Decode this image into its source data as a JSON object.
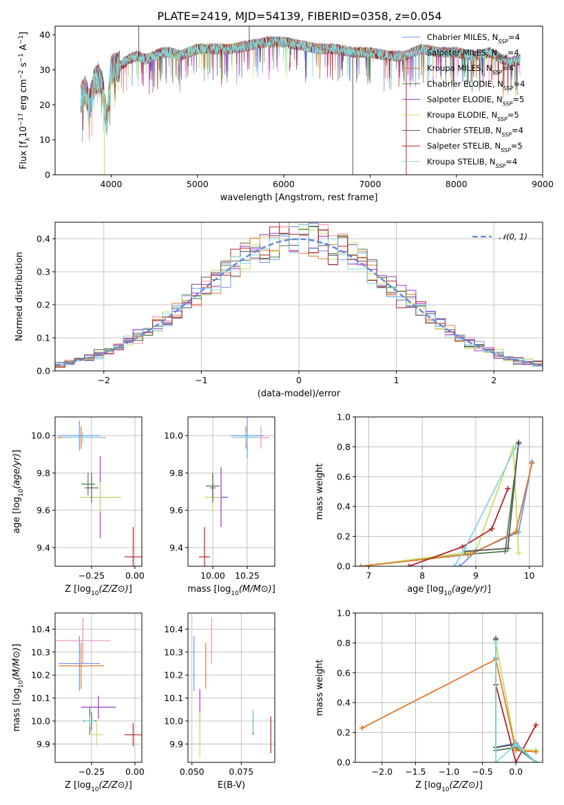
{
  "title": "PLATE=2419, MJD=54139, FIBERID=0358, z=0.054",
  "colors": [
    "#6495ed",
    "#f08cb4",
    "#e07828",
    "#4a7a4a",
    "#9932cc",
    "#c8dc64",
    "#555555",
    "#b22222",
    "#7fd8e0"
  ],
  "models": [
    {
      "label": "Chabrier MILES, N",
      "sub": "SSP",
      "eq": "=4"
    },
    {
      "label": "Salpeter MILES, N",
      "sub": "SSP",
      "eq": "=4"
    },
    {
      "label": "Kroupa MILES, N",
      "sub": "SSP",
      "eq": "=4"
    },
    {
      "label": "Chabrier ELODIE, N",
      "sub": "SSP",
      "eq": "=4"
    },
    {
      "label": "Salpeter ELODIE, N",
      "sub": "SSP",
      "eq": "=5"
    },
    {
      "label": "Kroupa ELODIE, N",
      "sub": "SSP",
      "eq": "=5"
    },
    {
      "label": "Chabrier STELIB, N",
      "sub": "SSP",
      "eq": "=4"
    },
    {
      "label": "Salpeter STELIB, N",
      "sub": "SSP",
      "eq": "=5"
    },
    {
      "label": "Kroupa STELIB, N",
      "sub": "SSP",
      "eq": "=4"
    }
  ],
  "chart_data": [
    {
      "id": "spectrum",
      "type": "line",
      "xlabel": "wavelength [Angstrom, rest frame]",
      "ylabel_parts": [
        "Flux [f",
        "λ",
        "10",
        "−17",
        " erg cm",
        "−2",
        " s",
        "−1",
        " A",
        "−1",
        "]"
      ],
      "xlim": [
        3350,
        9000
      ],
      "ylim": [
        0,
        42.5
      ],
      "xticks": [
        4000,
        5000,
        6000,
        7000,
        8000,
        9000
      ],
      "yticks": [
        0,
        10,
        20,
        30,
        40
      ],
      "x": [
        3650,
        3700,
        3750,
        3800,
        3850,
        3900,
        3950,
        4000,
        4100,
        4200,
        4300,
        4400,
        4500,
        4600,
        4700,
        4800,
        4900,
        5000,
        5200,
        5400,
        5600,
        5800,
        6000,
        6200,
        6400,
        6600,
        6800,
        7000,
        7200,
        7400,
        7600,
        7800,
        8000,
        8200,
        8400,
        8600,
        8740
      ],
      "y": [
        22,
        24,
        20,
        26,
        28,
        25,
        15,
        30,
        31,
        33,
        34,
        33,
        34,
        35,
        35,
        34,
        35,
        36,
        36,
        36,
        37,
        38,
        38,
        37,
        36,
        36,
        35,
        35,
        34,
        34,
        36,
        35,
        35,
        34,
        35,
        32,
        33
      ],
      "drops": [
        {
          "x": 3920,
          "y": 0
        },
        {
          "x": 6800,
          "y": 0
        },
        {
          "x": 7420,
          "y": 0
        },
        {
          "x": 4320,
          "y": 42.5
        },
        {
          "x": 5600,
          "y": 42.5
        }
      ]
    },
    {
      "id": "residuals",
      "type": "histogram",
      "xlabel": "(data-model)/error",
      "ylabel": "Normed distribution",
      "xlim": [
        -2.5,
        2.5
      ],
      "ylim": [
        0,
        0.45
      ],
      "xticks": [
        -2,
        -1,
        0,
        1,
        2
      ],
      "xticklabels": [
        "−2",
        "−1",
        "0",
        "1",
        "2"
      ],
      "yticks": [
        0,
        0.1,
        0.2,
        0.3,
        0.4
      ],
      "yticklabels": [
        "0.0",
        "0.1",
        "0.2",
        "0.3",
        "0.4"
      ],
      "bin_width": 0.1,
      "gaussian_label": "𝒩(0, 1)",
      "gaussian_color": "#6488dc"
    },
    {
      "id": "age-vs-Z",
      "type": "errorbar",
      "xlabel": "Z [log10(Z/Z⊙)]",
      "ylabel": "age  [log10(age/yr)]",
      "xlim": [
        -0.46,
        0.04
      ],
      "ylim": [
        9.3,
        10.1
      ],
      "xticks": [
        -0.25,
        0.0
      ],
      "xticklabels": [
        "−0.25",
        "0.00"
      ],
      "yticks": [
        9.4,
        9.6,
        9.8,
        10.0
      ],
      "yticklabels": [
        "9.4",
        "9.6",
        "9.8",
        "10.0"
      ],
      "points": [
        {
          "x": -0.32,
          "y": 10.0,
          "xe": 0.12,
          "ye": 0.08,
          "c": 0
        },
        {
          "x": -0.31,
          "y": 9.99,
          "xe": 0.13,
          "ye": 0.04,
          "c": 1
        },
        {
          "x": -0.31,
          "y": 9.99,
          "xe": 0.14,
          "ye": 0.06,
          "c": 2
        },
        {
          "x": -0.27,
          "y": 9.74,
          "xe": 0.04,
          "ye": 0.06,
          "c": 3
        },
        {
          "x": -0.2,
          "y": 9.67,
          "xe": 0.09,
          "ye": 0.22,
          "c": 4
        },
        {
          "x": -0.2,
          "y": 9.67,
          "xe": 0.12,
          "ye": 0.08,
          "c": 5
        },
        {
          "x": -0.25,
          "y": 9.72,
          "xe": 0.04,
          "ye": 0.08,
          "c": 6
        },
        {
          "x": -0.01,
          "y": 9.35,
          "xe": 0.05,
          "ye": 0.16,
          "c": 7
        },
        {
          "x": -0.3,
          "y": 9.99,
          "xe": 0.12,
          "ye": 0.03,
          "c": 8
        }
      ]
    },
    {
      "id": "age-vs-mass",
      "type": "errorbar",
      "xlabel": "mass [log10(M/M⊙)]",
      "ylabel": "",
      "xlim": [
        9.82,
        10.45
      ],
      "ylim": [
        9.3,
        10.1
      ],
      "xticks": [
        10.0,
        10.25
      ],
      "xticklabels": [
        "10.00",
        "10.25"
      ],
      "yticks": [
        9.4,
        9.6,
        9.8,
        10.0
      ],
      "yticklabels": [
        "9.4",
        "9.6",
        "9.8",
        "10.0"
      ],
      "points": [
        {
          "x": 10.25,
          "y": 10.0,
          "xe": 0.12,
          "ye": 0.12,
          "c": 0
        },
        {
          "x": 10.35,
          "y": 9.99,
          "xe": 0.06,
          "ye": 0.06,
          "c": 1
        },
        {
          "x": 10.24,
          "y": 9.99,
          "xe": 0.08,
          "ye": 0.06,
          "c": 2
        },
        {
          "x": 10.0,
          "y": 9.73,
          "xe": 0.05,
          "ye": 0.06,
          "c": 3
        },
        {
          "x": 10.06,
          "y": 9.67,
          "xe": 0.05,
          "ye": 0.16,
          "c": 4
        },
        {
          "x": 10.0,
          "y": 9.67,
          "xe": 0.06,
          "ye": 0.08,
          "c": 5
        },
        {
          "x": 10.0,
          "y": 9.72,
          "xe": 0.02,
          "ye": 0.08,
          "c": 6
        },
        {
          "x": 9.94,
          "y": 9.35,
          "xe": 0.04,
          "ye": 0.16,
          "c": 7
        },
        {
          "x": 10.24,
          "y": 9.99,
          "xe": 0.1,
          "ye": 0.03,
          "c": 8
        }
      ]
    },
    {
      "id": "weight-vs-age",
      "type": "line",
      "xlabel": "age  [log10(age/yr)]",
      "ylabel": "mass weight",
      "xlim": [
        6.75,
        10.25
      ],
      "ylim": [
        0,
        1.0
      ],
      "xticks": [
        7,
        8,
        9,
        10
      ],
      "xticklabels": [
        "7",
        "8",
        "9",
        "10"
      ],
      "yticks": [
        0,
        0.2,
        0.4,
        0.6,
        0.8,
        1.0
      ],
      "yticklabels": [
        "0.0",
        "0.2",
        "0.4",
        "0.6",
        "0.8",
        "1.0"
      ],
      "series": [
        {
          "c": 3,
          "x": [
            6.85,
            8.85,
            9.55,
            9.8
          ],
          "y": [
            0.0,
            0.08,
            0.1,
            0.82
          ]
        },
        {
          "c": 5,
          "x": [
            6.85,
            9.0,
            9.7,
            9.8
          ],
          "y": [
            0.0,
            0.1,
            0.8,
            0.09
          ]
        },
        {
          "c": 0,
          "x": [
            8.7,
            9.0,
            9.8,
            10.05
          ],
          "y": [
            0.0,
            0.1,
            0.23,
            0.7
          ]
        },
        {
          "c": 2,
          "x": [
            6.85,
            8.9,
            9.75,
            10.05
          ],
          "y": [
            0.0,
            0.08,
            0.23,
            0.69
          ]
        },
        {
          "c": 7,
          "x": [
            7.75,
            8.75,
            9.3,
            9.6
          ],
          "y": [
            0.0,
            0.13,
            0.25,
            0.52
          ]
        },
        {
          "c": 6,
          "x": [
            8.8,
            9.6,
            9.8
          ],
          "y": [
            0.1,
            0.12,
            0.83
          ]
        },
        {
          "c": 8,
          "x": [
            8.6,
            8.8,
            9.75
          ],
          "y": [
            0.0,
            0.12,
            0.8
          ]
        }
      ]
    },
    {
      "id": "mass-vs-Z",
      "type": "errorbar",
      "xlabel": "Z [log10(Z/Z⊙)]",
      "ylabel": "mass [log10(M/M⊙)]",
      "xlim": [
        -0.46,
        0.04
      ],
      "ylim": [
        9.82,
        10.47
      ],
      "xticks": [
        -0.25,
        0.0
      ],
      "xticklabels": [
        "−0.25",
        "0.00"
      ],
      "yticks": [
        9.9,
        10.0,
        10.1,
        10.2,
        10.3,
        10.4
      ],
      "yticklabels": [
        "9.9",
        "10.0",
        "10.1",
        "10.2",
        "10.3",
        "10.4"
      ],
      "points": [
        {
          "x": -0.32,
          "y": 10.25,
          "xe": 0.12,
          "ye": 0.12,
          "c": 0
        },
        {
          "x": -0.3,
          "y": 10.35,
          "xe": 0.16,
          "ye": 0.1,
          "c": 1
        },
        {
          "x": -0.31,
          "y": 10.24,
          "xe": 0.13,
          "ye": 0.1,
          "c": 2
        },
        {
          "x": -0.26,
          "y": 10.0,
          "xe": 0.04,
          "ye": 0.06,
          "c": 3
        },
        {
          "x": -0.21,
          "y": 10.06,
          "xe": 0.1,
          "ye": 0.05,
          "c": 4
        },
        {
          "x": -0.22,
          "y": 9.94,
          "xe": 0.04,
          "ye": 0.05,
          "c": 5
        },
        {
          "x": -0.25,
          "y": 10.0,
          "xe": 0.03,
          "ye": 0.04,
          "c": 6
        },
        {
          "x": -0.01,
          "y": 9.94,
          "xe": 0.05,
          "ye": 0.05,
          "c": 7
        },
        {
          "x": -0.26,
          "y": 10.0,
          "xe": 0.03,
          "ye": 0.02,
          "c": 8
        }
      ]
    },
    {
      "id": "mass-vs-EBV",
      "type": "errorbar",
      "xlabel": "E(B-V)",
      "ylabel": "",
      "xlim": [
        0.048,
        0.092
      ],
      "ylim": [
        9.82,
        10.47
      ],
      "xticks": [
        0.05,
        0.075
      ],
      "xticklabels": [
        "0.050",
        "0.075"
      ],
      "yticks": [
        9.9,
        10.0,
        10.1,
        10.2,
        10.3,
        10.4
      ],
      "yticklabels": [
        "9.9",
        "10.0",
        "10.1",
        "10.2",
        "10.3",
        "10.4"
      ],
      "points": [
        {
          "x": 0.051,
          "y": 10.25,
          "xe": 0.0,
          "ye": 0.12,
          "c": 0
        },
        {
          "x": 0.06,
          "y": 10.35,
          "xe": 0.0,
          "ye": 0.1,
          "c": 1
        },
        {
          "x": 0.057,
          "y": 10.24,
          "xe": 0.0,
          "ye": 0.1,
          "c": 2
        },
        {
          "x": 0.081,
          "y": 10.0,
          "xe": 0.0,
          "ye": 0.05,
          "c": 3
        },
        {
          "x": 0.054,
          "y": 10.06,
          "xe": 0.0,
          "ye": 0.08,
          "c": 4
        },
        {
          "x": 0.054,
          "y": 9.94,
          "xe": 0.0,
          "ye": 0.1,
          "c": 5
        },
        {
          "x": 0.081,
          "y": 9.99,
          "xe": 0.0,
          "ye": 0.05,
          "c": 6
        },
        {
          "x": 0.09,
          "y": 9.94,
          "xe": 0.0,
          "ye": 0.08,
          "c": 7
        },
        {
          "x": 0.081,
          "y": 10.0,
          "xe": 0.0,
          "ye": 0.05,
          "c": 8
        }
      ]
    },
    {
      "id": "weight-vs-Z",
      "type": "line",
      "xlabel": "Z [log10(Z/Z⊙)]",
      "ylabel": "mass weight",
      "xlim": [
        -2.4,
        0.4
      ],
      "ylim": [
        0,
        1.0
      ],
      "xticks": [
        -2.0,
        -1.5,
        -1.0,
        -0.5,
        0.0
      ],
      "xticklabels": [
        "−2.0",
        "−1.5",
        "−1.0",
        "−0.5",
        "0.0"
      ],
      "yticks": [
        0,
        0.2,
        0.4,
        0.6,
        0.8,
        1.0
      ],
      "yticklabels": [
        "0.0",
        "0.2",
        "0.4",
        "0.6",
        "0.8",
        "1.0"
      ],
      "series": [
        {
          "c": 0,
          "x": [
            -0.3,
            -0.3,
            0.0,
            0.3
          ],
          "y": [
            0.7,
            0.1,
            0.13,
            0.0
          ]
        },
        {
          "c": 7,
          "x": [
            -0.3,
            0.0,
            0.3
          ],
          "y": [
            0.52,
            0.0,
            0.25
          ]
        },
        {
          "c": 6,
          "x": [
            -0.3,
            -0.3,
            0.0,
            0.3
          ],
          "y": [
            0.83,
            0.1,
            0.12,
            0.0
          ]
        },
        {
          "c": 5,
          "x": [
            -0.3,
            0.0,
            0.3
          ],
          "y": [
            0.8,
            0.09,
            0.08
          ]
        },
        {
          "c": 3,
          "x": [
            -0.3,
            -0.3,
            0.0,
            0.3
          ],
          "y": [
            0.82,
            0.08,
            0.1,
            0.0
          ]
        },
        {
          "c": 2,
          "x": [
            -2.3,
            -0.3,
            0.0,
            0.3
          ],
          "y": [
            0.23,
            0.69,
            0.08,
            0.07
          ]
        },
        {
          "c": 8,
          "x": [
            -0.3,
            -0.3,
            0.0,
            0.3
          ],
          "y": [
            0.8,
            0.0,
            0.12,
            0.0
          ]
        }
      ]
    }
  ]
}
